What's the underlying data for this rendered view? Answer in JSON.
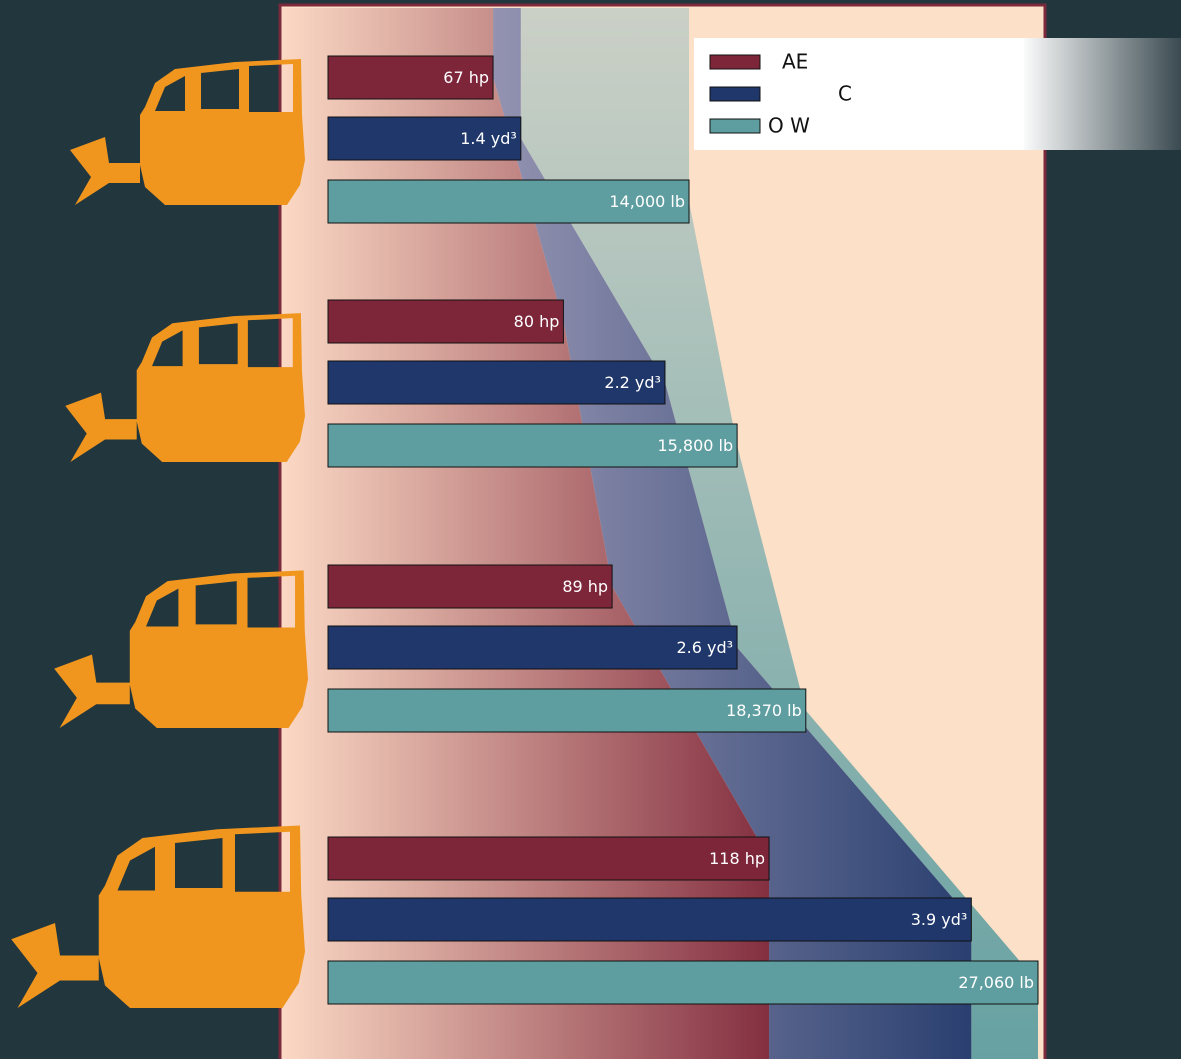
{
  "chart_data": {
    "type": "bar",
    "series": [
      {
        "name": "AE",
        "color": "#7d2639",
        "values": [
          67,
          80,
          89,
          118
        ],
        "value_labels": [
          "67 hp",
          "80 hp",
          "89 hp",
          "118 hp"
        ],
        "xlim": [
          36.5,
          167.7
        ]
      },
      {
        "name": "C",
        "color": "#1f376b",
        "values": [
          1.4,
          2.2,
          2.6,
          3.9
        ],
        "value_labels": [
          "1.4 yd³",
          "2.2 yd³",
          "2.6 yd³",
          "3.9 yd³"
        ],
        "xlim": [
          0.33,
          4.27
        ]
      },
      {
        "name": "O W",
        "color": "#5f9ea0",
        "values": [
          14000,
          15800,
          18370,
          27060
        ],
        "value_labels": [
          "14,000 lb",
          "15,800 lb",
          "18,370 lb",
          "27,060 lb"
        ],
        "xlim": [
          490,
          27060
        ]
      }
    ]
  }
}
